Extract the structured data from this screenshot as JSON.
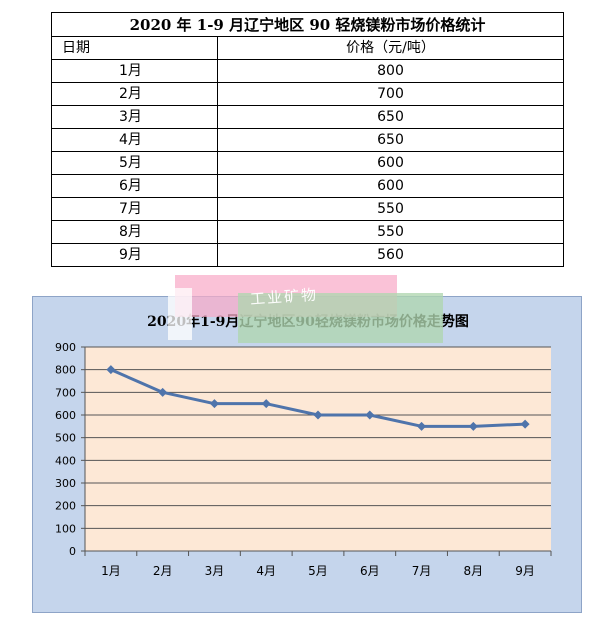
{
  "table": {
    "title": "2020 年 1-9 月辽宁地区 90 轻烧镁粉市场价格统计",
    "headers": [
      "日期",
      "价格（元/吨）"
    ],
    "rows": [
      [
        "1月",
        "800"
      ],
      [
        "2月",
        "700"
      ],
      [
        "3月",
        "650"
      ],
      [
        "4月",
        "650"
      ],
      [
        "5月",
        "600"
      ],
      [
        "6月",
        "600"
      ],
      [
        "7月",
        "550"
      ],
      [
        "8月",
        "550"
      ],
      [
        "9月",
        "560"
      ]
    ]
  },
  "watermark": {
    "text": "工业矿物"
  },
  "colors": {
    "line": "#4f74ab",
    "plot_bg": "#fde8d6",
    "panel_bg": "#c5d5ec"
  },
  "chart_data": {
    "type": "line",
    "title": "2020年1-9月辽宁地区90轻烧镁粉市场价格走势图",
    "categories": [
      "1月",
      "2月",
      "3月",
      "4月",
      "5月",
      "6月",
      "7月",
      "8月",
      "9月"
    ],
    "values": [
      800,
      700,
      650,
      650,
      600,
      600,
      550,
      550,
      560
    ],
    "xlabel": "",
    "ylabel": "",
    "ylim": [
      0,
      900
    ],
    "yticks": [
      "0",
      "100",
      "200",
      "300",
      "400",
      "500",
      "600",
      "700",
      "800",
      "900"
    ],
    "grid": true,
    "marker": "diamond"
  }
}
